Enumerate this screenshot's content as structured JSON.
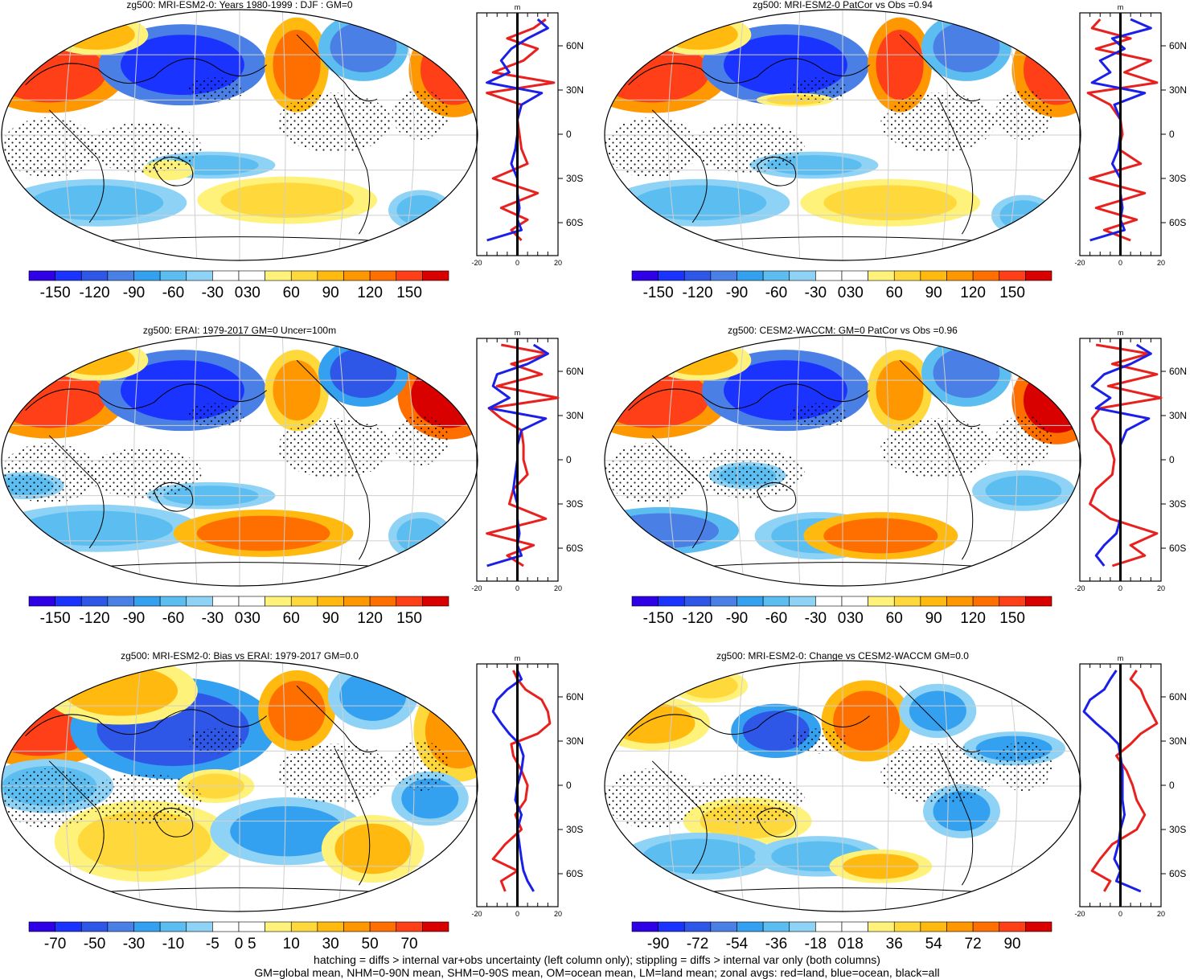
{
  "figure": {
    "footnote_1": "hatching = diffs > internal var+obs uncertainty (left column only); stippling = diffs > internal var only (both columns)",
    "footnote_2": "GM=global mean, NHM=0-90N mean, SHM=0-90S mean, OM=ocean mean, LM=land mean; zonal avgs: red=land, blue=ocean, black=all"
  },
  "colors": {
    "land_line": "#e8201e",
    "ocean_line": "#1a20e8",
    "all_line": "#000000",
    "palette": [
      "#2f00e6",
      "#1a33ff",
      "#2e57e8",
      "#4a80e6",
      "#33a1f0",
      "#5cbef0",
      "#8ed3f5",
      "#ffffff",
      "#ffffff",
      "#fff27a",
      "#ffd93b",
      "#ffb90f",
      "#ff9800",
      "#ff6f00",
      "#ff3f17",
      "#d90000"
    ]
  },
  "chart_data": [
    {
      "type": "heatmap",
      "title": "zg500: MRI-ESM2-0: Years 1980-1999 : DJF : GM=0",
      "colorbar_labels": [
        "-150",
        "-120",
        "-90",
        "-60",
        "-30",
        "0",
        "30",
        "60",
        "90",
        "120",
        "150"
      ],
      "lat_labels": [
        "60N",
        "30N",
        "0",
        "30S",
        "60S"
      ],
      "zonal": {
        "xlabel": "m",
        "xlim": [
          -20,
          20
        ],
        "xticks": [
          "-20",
          "0",
          "20"
        ],
        "series": [
          {
            "name": "land",
            "lat": [
              78,
              72,
              65,
              58,
              50,
              42,
              35,
              28,
              20,
              10,
              0,
              -10,
              -20,
              -30,
              -40,
              -50,
              -58,
              -65,
              -72
            ],
            "values": [
              14,
              8,
              -5,
              10,
              3,
              -12,
              18,
              -15,
              2,
              0,
              1,
              2,
              5,
              -12,
              10,
              -8,
              5,
              -3,
              2
            ]
          },
          {
            "name": "ocean",
            "lat": [
              78,
              72,
              65,
              58,
              50,
              42,
              35,
              28,
              20,
              10,
              0,
              -10,
              -20,
              -30,
              -40,
              -50,
              -58,
              -65,
              -72
            ],
            "values": [
              10,
              15,
              5,
              -3,
              -8,
              -4,
              -15,
              12,
              2,
              0,
              0,
              -1,
              -3,
              0,
              0,
              1,
              0,
              2,
              -15
            ]
          }
        ]
      }
    },
    {
      "type": "heatmap",
      "title": "zg500: MRI-ESM2-0 PatCor vs Obs =0.94",
      "colorbar_labels": [
        "-150",
        "-120",
        "-90",
        "-60",
        "-30",
        "0",
        "30",
        "60",
        "90",
        "120",
        "150"
      ],
      "lat_labels": [
        "60N",
        "30N",
        "0",
        "30S",
        "60S"
      ],
      "zonal": {
        "xlabel": "m",
        "xlim": [
          -20,
          20
        ],
        "xticks": [
          "-20",
          "0",
          "20"
        ],
        "series": [
          {
            "name": "land",
            "lat": [
              78,
              72,
              65,
              58,
              50,
              42,
              35,
              28,
              20,
              10,
              0,
              -10,
              -20,
              -30,
              -40,
              -50,
              -58,
              -65,
              -72
            ],
            "values": [
              -10,
              -14,
              5,
              -12,
              15,
              2,
              18,
              -16,
              -5,
              0,
              1,
              -1,
              10,
              -15,
              12,
              -12,
              8,
              -8,
              5
            ]
          },
          {
            "name": "ocean",
            "lat": [
              78,
              72,
              65,
              58,
              50,
              42,
              35,
              28,
              20,
              10,
              0,
              -10,
              -20,
              -30,
              -40,
              -50,
              -58,
              -65,
              -72
            ],
            "values": [
              5,
              15,
              -4,
              2,
              -10,
              -5,
              -14,
              12,
              -3,
              0,
              0,
              -1,
              -4,
              0,
              0,
              1,
              0,
              2,
              -15
            ]
          }
        ]
      }
    },
    {
      "type": "heatmap",
      "title": "zg500: ERAI: 1979-2017 GM=0 Uncer=100m",
      "colorbar_labels": [
        "-150",
        "-120",
        "-90",
        "-60",
        "-30",
        "0",
        "30",
        "60",
        "90",
        "120",
        "150"
      ],
      "lat_labels": [
        "60N",
        "30N",
        "0",
        "30S",
        "60S"
      ],
      "zonal": {
        "xlabel": "m",
        "xlim": [
          -20,
          20
        ],
        "xticks": [
          "-20",
          "0",
          "20"
        ],
        "series": [
          {
            "name": "land",
            "lat": [
              78,
              72,
              65,
              58,
              50,
              42,
              35,
              28,
              20,
              10,
              0,
              -10,
              -20,
              -30,
              -40,
              -50,
              -58,
              -65,
              -72
            ],
            "values": [
              -8,
              15,
              -3,
              12,
              -10,
              20,
              -14,
              -8,
              2,
              3,
              3,
              5,
              -2,
              -4,
              14,
              -15,
              8,
              -5,
              3
            ]
          },
          {
            "name": "ocean",
            "lat": [
              78,
              72,
              65,
              58,
              50,
              42,
              35,
              28,
              20,
              10,
              0,
              -10,
              -20,
              -30,
              -40,
              -50,
              -58,
              -65,
              -72
            ],
            "values": [
              8,
              15,
              5,
              -10,
              -12,
              -4,
              -14,
              14,
              2,
              0,
              0,
              -1,
              -2,
              0,
              0,
              1,
              0,
              2,
              -15
            ]
          }
        ]
      }
    },
    {
      "type": "heatmap",
      "title": "zg500: CESM2-WACCM: GM=0 PatCor vs Obs =0.96",
      "colorbar_labels": [
        "-150",
        "-120",
        "-90",
        "-60",
        "-30",
        "0",
        "30",
        "60",
        "90",
        "120",
        "150"
      ],
      "lat_labels": [
        "60N",
        "30N",
        "0",
        "30S",
        "60S"
      ],
      "zonal": {
        "xlabel": "m",
        "xlim": [
          -20,
          20
        ],
        "xticks": [
          "-20",
          "0",
          "20"
        ],
        "series": [
          {
            "name": "land",
            "lat": [
              78,
              72,
              65,
              58,
              50,
              42,
              35,
              28,
              20,
              10,
              0,
              -10,
              -20,
              -30,
              -40,
              -50,
              -58,
              -65,
              -72
            ],
            "values": [
              -12,
              14,
              -4,
              18,
              -6,
              20,
              -10,
              -14,
              -12,
              -5,
              -3,
              -4,
              -12,
              -15,
              -5,
              18,
              5,
              12,
              -4
            ]
          },
          {
            "name": "ocean",
            "lat": [
              78,
              72,
              65,
              58,
              50,
              42,
              35,
              28,
              20,
              10,
              0,
              -10,
              -20,
              -30,
              -40,
              -50,
              -58,
              -65,
              -72
            ],
            "values": [
              8,
              15,
              5,
              -8,
              -14,
              -5,
              -12,
              14,
              3,
              0,
              0,
              0,
              0,
              0,
              0,
              -2,
              -8,
              -12,
              -8
            ]
          }
        ]
      }
    },
    {
      "type": "heatmap",
      "title": "zg500: MRI-ESM2-0: Bias vs ERAI: 1979-2017 GM=0.0",
      "colorbar_labels": [
        "-70",
        "-50",
        "-30",
        "-10",
        "-5",
        "0",
        "5",
        "10",
        "30",
        "50",
        "70"
      ],
      "lat_labels": [
        "60N",
        "30N",
        "0",
        "30S",
        "60S"
      ],
      "zonal": {
        "xlabel": "m",
        "xlim": [
          -20,
          20
        ],
        "xticks": [
          "-20",
          "0",
          "20"
        ],
        "series": [
          {
            "name": "land",
            "lat": [
              78,
              72,
              65,
              58,
              50,
              42,
              35,
              28,
              20,
              10,
              0,
              -10,
              -20,
              -30,
              -40,
              -50,
              -58,
              -65,
              -72
            ],
            "values": [
              -2,
              0,
              4,
              12,
              15,
              16,
              10,
              -3,
              -2,
              2,
              5,
              4,
              -1,
              2,
              -6,
              -12,
              0,
              -8,
              -6
            ]
          },
          {
            "name": "ocean",
            "lat": [
              78,
              72,
              65,
              58,
              50,
              42,
              35,
              28,
              20,
              10,
              0,
              -10,
              -20,
              -30,
              -40,
              -50,
              -58,
              -65,
              -72
            ],
            "values": [
              0,
              2,
              -5,
              -10,
              -12,
              -8,
              -4,
              1,
              3,
              2,
              0,
              -1,
              2,
              0,
              1,
              2,
              3,
              5,
              8
            ]
          }
        ]
      }
    },
    {
      "type": "heatmap",
      "title": "zg500: MRI-ESM2-0: Change vs CESM2-WACCM GM=0.0",
      "colorbar_labels": [
        "-90",
        "-72",
        "-54",
        "-36",
        "-18",
        "0",
        "18",
        "36",
        "54",
        "72",
        "90"
      ],
      "lat_labels": [
        "60N",
        "30N",
        "0",
        "30S",
        "60S"
      ],
      "zonal": {
        "xlabel": "m",
        "xlim": [
          -20,
          20
        ],
        "xticks": [
          "-20",
          "0",
          "20"
        ],
        "series": [
          {
            "name": "land",
            "lat": [
              78,
              72,
              65,
              58,
              50,
              42,
              35,
              28,
              20,
              10,
              0,
              -10,
              -20,
              -30,
              -40,
              -50,
              -58,
              -65,
              -72
            ],
            "values": [
              8,
              5,
              10,
              12,
              15,
              18,
              10,
              5,
              -2,
              3,
              6,
              8,
              12,
              8,
              -4,
              -10,
              -14,
              -5,
              -8
            ]
          },
          {
            "name": "ocean",
            "lat": [
              78,
              72,
              65,
              58,
              50,
              42,
              35,
              28,
              20,
              10,
              0,
              -10,
              -20,
              -30,
              -40,
              -50,
              -58,
              -65,
              -72
            ],
            "values": [
              -2,
              -5,
              -8,
              -15,
              -18,
              -12,
              -6,
              -1,
              0,
              1,
              1,
              1,
              2,
              0,
              -1,
              -3,
              0,
              -2,
              10
            ]
          }
        ]
      }
    }
  ]
}
